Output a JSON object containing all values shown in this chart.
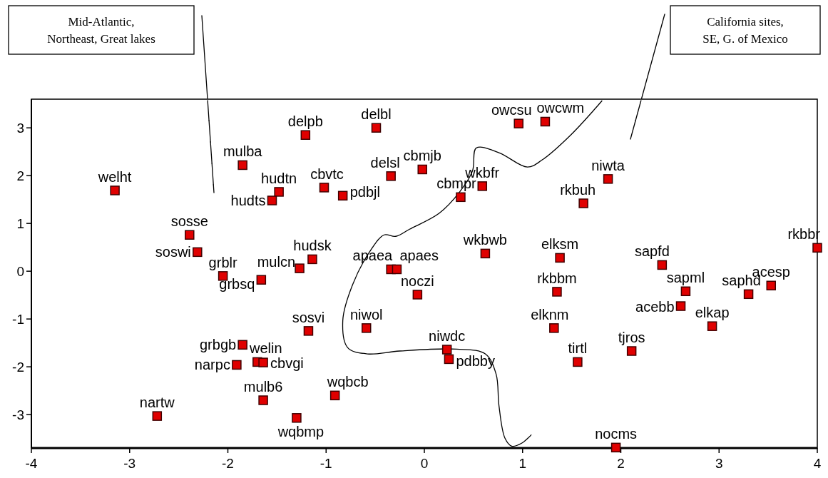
{
  "chart_data": {
    "type": "scatter",
    "xlim": [
      -4,
      4
    ],
    "ylim": [
      -3.7,
      3.6
    ],
    "xticks": [
      -4,
      -3,
      -2,
      -1,
      0,
      1,
      2,
      3,
      4
    ],
    "yticks": [
      -3,
      -2,
      -1,
      0,
      1,
      2,
      3
    ],
    "grid": false,
    "marker": "square",
    "series": [
      {
        "color": "#e00000",
        "x": [
          -3.15,
          -1.85,
          -1.21,
          -0.49,
          0.96,
          1.23,
          -0.34,
          -0.02,
          -1.48,
          -1.02,
          -1.55,
          -0.83,
          0.59,
          0.37,
          1.87,
          1.62,
          -2.39,
          -2.31,
          -1.14,
          -1.27,
          -2.05,
          -1.66,
          -0.34,
          -0.28,
          0.62,
          1.38,
          4.0,
          2.42,
          -0.07,
          1.35,
          2.66,
          3.3,
          3.53,
          2.61,
          2.93,
          -0.59,
          -1.18,
          1.32,
          -1.85,
          0.23,
          2.11,
          -1.7,
          -1.64,
          -1.91,
          0.25,
          1.56,
          -0.91,
          -1.64,
          -2.72,
          -1.3,
          1.95
        ],
        "values": [
          1.69,
          2.22,
          2.85,
          3.0,
          3.09,
          3.13,
          1.99,
          2.13,
          1.66,
          1.75,
          1.48,
          1.58,
          1.78,
          1.55,
          1.93,
          1.42,
          0.76,
          0.4,
          0.25,
          0.06,
          -0.1,
          -0.18,
          0.04,
          0.04,
          0.37,
          0.28,
          0.49,
          0.13,
          -0.49,
          -0.43,
          -0.42,
          -0.48,
          -0.3,
          -0.73,
          -1.15,
          -1.19,
          -1.25,
          -1.19,
          -1.54,
          -1.64,
          -1.67,
          -1.9,
          -1.91,
          -1.96,
          -1.84,
          -1.9,
          -2.6,
          -2.7,
          -3.03,
          -3.07,
          -3.69
        ]
      },
      {
        "type": "line",
        "marker": "none",
        "color": "#000000",
        "x": [
          1.81,
          1.49,
          1.2,
          1.05,
          0.76,
          0.53,
          0.49,
          0.36,
          0.15,
          -0.15,
          -0.29,
          -0.41,
          -0.54,
          -0.73,
          -0.83,
          -0.78,
          -0.58,
          -0.25,
          0.33,
          0.62,
          0.73,
          0.76,
          0.82,
          0.89,
          0.99,
          1.09
        ],
        "values": [
          3.57,
          2.85,
          2.33,
          2.18,
          2.48,
          2.58,
          2.1,
          1.66,
          1.21,
          0.88,
          0.73,
          0.76,
          0.46,
          -0.28,
          -1.03,
          -1.6,
          -1.73,
          -1.67,
          -1.63,
          -1.73,
          -2.15,
          -2.82,
          -3.49,
          -3.66,
          -3.6,
          -3.42
        ]
      }
    ],
    "annotations": [
      "Mid-Atlantic,\nNortheast, Great lakes",
      "California sites,\nSE, G. of Mexico",
      {
        "text": "welht",
        "x": -3.15,
        "y": 1.69
      },
      {
        "text": "mulba",
        "x": -1.85,
        "y": 2.22
      },
      {
        "text": "delpb",
        "x": -1.21,
        "y": 2.85
      },
      {
        "text": "delbl",
        "x": -0.49,
        "y": 3.0
      },
      {
        "text": "owcsu",
        "x": 0.96,
        "y": 3.09
      },
      {
        "text": "owcwm",
        "x": 1.23,
        "y": 3.13
      },
      {
        "text": "delsl",
        "x": -0.34,
        "y": 1.99
      },
      {
        "text": "cbmjb",
        "x": -0.02,
        "y": 2.13
      },
      {
        "text": "hudtn",
        "x": -1.48,
        "y": 1.66
      },
      {
        "text": "cbvtc",
        "x": -1.02,
        "y": 1.75
      },
      {
        "text": "hudts",
        "x": -1.55,
        "y": 1.48
      },
      {
        "text": "pdbjl",
        "x": -0.83,
        "y": 1.58
      },
      {
        "text": "wkbfr",
        "x": 0.59,
        "y": 1.78
      },
      {
        "text": "cbmpr",
        "x": 0.37,
        "y": 1.55
      },
      {
        "text": "niwta",
        "x": 1.87,
        "y": 1.93
      },
      {
        "text": "rkbuh",
        "x": 1.62,
        "y": 1.42
      },
      {
        "text": "sosse",
        "x": -2.39,
        "y": 0.76
      },
      {
        "text": "soswi",
        "x": -2.31,
        "y": 0.4
      },
      {
        "text": "hudsk",
        "x": -1.14,
        "y": 0.25
      },
      {
        "text": "mulcn",
        "x": -1.27,
        "y": 0.06
      },
      {
        "text": "grblr",
        "x": -2.05,
        "y": -0.1
      },
      {
        "text": "grbsq",
        "x": -1.66,
        "y": -0.18
      },
      {
        "text": "apaea",
        "x": -0.34,
        "y": 0.04
      },
      {
        "text": "apaes",
        "x": -0.28,
        "y": 0.04
      },
      {
        "text": "wkbwb",
        "x": 0.62,
        "y": 0.37
      },
      {
        "text": "elksm",
        "x": 1.38,
        "y": 0.28
      },
      {
        "text": "rkbbr",
        "x": 4.0,
        "y": 0.49
      },
      {
        "text": "sapfd",
        "x": 2.42,
        "y": 0.13
      },
      {
        "text": "noczi",
        "x": -0.07,
        "y": -0.49
      },
      {
        "text": "rkbbm",
        "x": 1.35,
        "y": -0.43
      },
      {
        "text": "sapml",
        "x": 2.66,
        "y": -0.42
      },
      {
        "text": "saphd",
        "x": 3.3,
        "y": -0.48
      },
      {
        "text": "acesp",
        "x": 3.53,
        "y": -0.3
      },
      {
        "text": "acebb",
        "x": 2.61,
        "y": -0.73
      },
      {
        "text": "elkap",
        "x": 2.93,
        "y": -1.15
      },
      {
        "text": "niwol",
        "x": -0.59,
        "y": -1.19
      },
      {
        "text": "sosvi",
        "x": -1.18,
        "y": -1.25
      },
      {
        "text": "elknm",
        "x": 1.32,
        "y": -1.19
      },
      {
        "text": "grbgb",
        "x": -1.85,
        "y": -1.54
      },
      {
        "text": "niwdc",
        "x": 0.23,
        "y": -1.64
      },
      {
        "text": "tjros",
        "x": 2.11,
        "y": -1.67
      },
      {
        "text": "welin",
        "x": -1.7,
        "y": -1.9
      },
      {
        "text": "cbvgi",
        "x": -1.64,
        "y": -1.91
      },
      {
        "text": "narpc",
        "x": -1.91,
        "y": -1.96
      },
      {
        "text": "pdbby",
        "x": 0.25,
        "y": -1.84
      },
      {
        "text": "tirtl",
        "x": 1.56,
        "y": -1.9
      },
      {
        "text": "wqbcb",
        "x": -0.91,
        "y": -2.6
      },
      {
        "text": "mulb6",
        "x": -1.64,
        "y": -2.7
      },
      {
        "text": "nartw",
        "x": -2.72,
        "y": -3.03
      },
      {
        "text": "wqbmp",
        "x": -1.3,
        "y": -3.07
      },
      {
        "text": "nocms",
        "x": 1.95,
        "y": -3.69
      }
    ]
  }
}
